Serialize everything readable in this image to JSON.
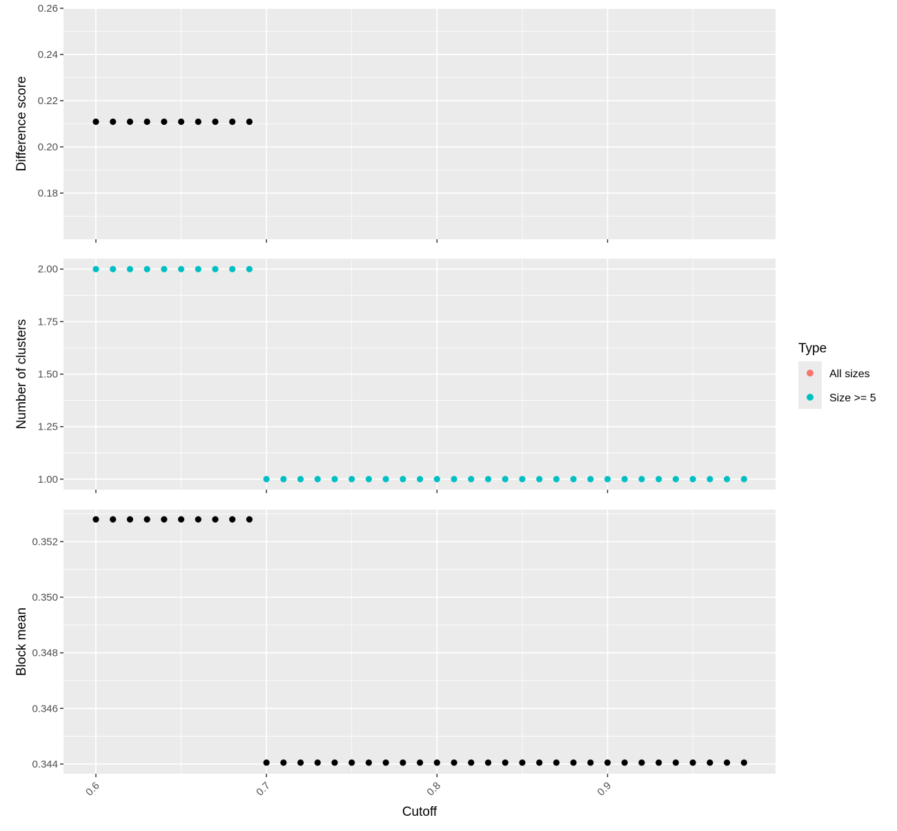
{
  "chart_data": {
    "type": "scatter",
    "x_label": "Cutoff",
    "x_ticks": [
      0.6,
      0.7,
      0.8,
      0.9
    ],
    "x_tick_labels": [
      "0.6",
      "0.7",
      "0.8",
      "0.9"
    ],
    "xlim": [
      0.581,
      0.9985
    ],
    "grid": true,
    "colors": {
      "All sizes": "#F8766D",
      "Size >= 5": "#00BFC4",
      "points": "#000000",
      "panel_background": "#EBEBEB",
      "grid": "#FFFFFF"
    },
    "legend": {
      "title": "Type",
      "position": "right",
      "entries": [
        {
          "label": "All sizes",
          "color": "#F8766D"
        },
        {
          "label": "Size >= 5",
          "color": "#00BFC4"
        }
      ]
    },
    "panels": [
      {
        "ylabel": "Difference score",
        "ylim": [
          0.16,
          0.26
        ],
        "y_ticks": [
          0.18,
          0.2,
          0.22,
          0.24,
          0.26
        ],
        "y_tick_labels": [
          "0.18",
          "0.20",
          "0.22",
          "0.24",
          "0.26"
        ],
        "series": [
          {
            "color": "#000000",
            "x": [
              0.6,
              0.61,
              0.62,
              0.63,
              0.64,
              0.65,
              0.66,
              0.67,
              0.68,
              0.69
            ],
            "y": [
              0.2109,
              0.2109,
              0.2109,
              0.2109,
              0.2109,
              0.2109,
              0.2109,
              0.2109,
              0.2109,
              0.2109
            ]
          }
        ]
      },
      {
        "ylabel": "Number of clusters",
        "ylim": [
          0.95,
          2.05
        ],
        "y_ticks": [
          1.0,
          1.25,
          1.5,
          1.75,
          2.0
        ],
        "y_tick_labels": [
          "1.00",
          "1.25",
          "1.50",
          "1.75",
          "2.00"
        ],
        "series": [
          {
            "name": "Size >= 5",
            "color": "#00BFC4",
            "x": [
              0.6,
              0.61,
              0.62,
              0.63,
              0.64,
              0.65,
              0.66,
              0.67,
              0.68,
              0.69,
              0.7,
              0.71,
              0.72,
              0.73,
              0.74,
              0.75,
              0.76,
              0.77,
              0.78,
              0.79,
              0.8,
              0.81,
              0.82,
              0.83,
              0.84,
              0.85,
              0.86,
              0.87,
              0.88,
              0.89,
              0.9,
              0.91,
              0.92,
              0.93,
              0.94,
              0.95,
              0.96,
              0.97,
              0.98
            ],
            "y": [
              2,
              2,
              2,
              2,
              2,
              2,
              2,
              2,
              2,
              2,
              1,
              1,
              1,
              1,
              1,
              1,
              1,
              1,
              1,
              1,
              1,
              1,
              1,
              1,
              1,
              1,
              1,
              1,
              1,
              1,
              1,
              1,
              1,
              1,
              1,
              1,
              1,
              1,
              1
            ]
          }
        ]
      },
      {
        "ylabel": "Block mean",
        "ylim": [
          0.34365,
          0.35315
        ],
        "y_ticks": [
          0.344,
          0.346,
          0.348,
          0.35,
          0.352
        ],
        "y_tick_labels": [
          "0.344",
          "0.346",
          "0.348",
          "0.350",
          "0.352"
        ],
        "series": [
          {
            "color": "#000000",
            "x": [
              0.6,
              0.61,
              0.62,
              0.63,
              0.64,
              0.65,
              0.66,
              0.67,
              0.68,
              0.69,
              0.7,
              0.71,
              0.72,
              0.73,
              0.74,
              0.75,
              0.76,
              0.77,
              0.78,
              0.79,
              0.8,
              0.81,
              0.82,
              0.83,
              0.84,
              0.85,
              0.86,
              0.87,
              0.88,
              0.89,
              0.9,
              0.91,
              0.92,
              0.93,
              0.94,
              0.95,
              0.96,
              0.97,
              0.98
            ],
            "y": [
              0.3528,
              0.3528,
              0.3528,
              0.3528,
              0.3528,
              0.3528,
              0.3528,
              0.3528,
              0.3528,
              0.3528,
              0.34405,
              0.34405,
              0.34405,
              0.34405,
              0.34405,
              0.34405,
              0.34405,
              0.34405,
              0.34405,
              0.34405,
              0.34405,
              0.34405,
              0.34405,
              0.34405,
              0.34405,
              0.34405,
              0.34405,
              0.34405,
              0.34405,
              0.34405,
              0.34405,
              0.34405,
              0.34405,
              0.34405,
              0.34405,
              0.34405,
              0.34405,
              0.34405,
              0.34405
            ]
          }
        ]
      }
    ]
  }
}
